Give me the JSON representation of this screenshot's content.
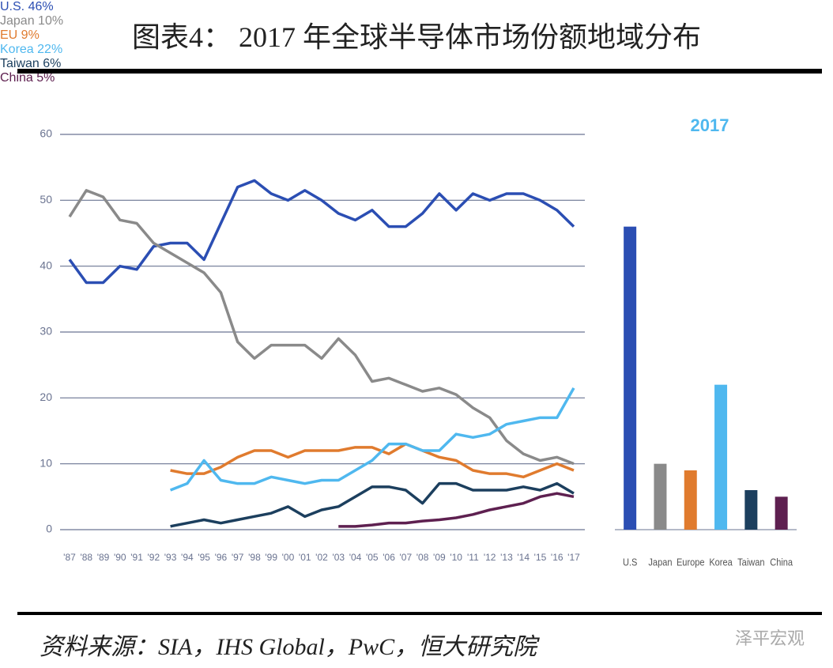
{
  "header": {
    "title": "图表4： 2017 年全球半导体市场份额地域分布"
  },
  "footer": {
    "source": "资料来源：SIA，IHS Global，PwC，恒大研究院",
    "watermark": "泽平宏观"
  },
  "chart_data": [
    {
      "type": "line",
      "categories": [
        "'87",
        "'88",
        "'89",
        "'90",
        "'91",
        "'92",
        "'93",
        "'94",
        "'95",
        "'96",
        "'97",
        "'98",
        "'99",
        "'00",
        "'01",
        "'02",
        "'03",
        "'04",
        "'05",
        "'06",
        "'07",
        "'08",
        "'09",
        "'10",
        "'11",
        "'12",
        "'13",
        "'14",
        "'15",
        "'16",
        "'17"
      ],
      "ylim": [
        0,
        60
      ],
      "yticks": [
        0,
        10,
        20,
        30,
        40,
        50,
        60
      ],
      "grid": true,
      "series": [
        {
          "color": "#2b4eb3",
          "values": [
            41,
            37.5,
            37.5,
            40,
            39.5,
            43,
            43.5,
            43.5,
            41,
            46.5,
            52,
            53,
            51,
            50,
            51.5,
            50,
            48,
            47,
            48.5,
            46,
            46,
            48,
            51,
            48.5,
            51,
            50,
            51,
            51,
            50,
            48.5,
            46
          ]
        },
        {
          "color": "#8a8a8a",
          "values": [
            47.5,
            51.5,
            50.5,
            47,
            46.5,
            43.5,
            42,
            40.5,
            39,
            36,
            28.5,
            26,
            28,
            28,
            28,
            26,
            29,
            26.5,
            22.5,
            23,
            22,
            21,
            21.5,
            20.5,
            18.5,
            17,
            13.5,
            11.5,
            10.5,
            11,
            10
          ]
        },
        {
          "color": "#e07b2e",
          "values": [
            null,
            null,
            null,
            null,
            null,
            null,
            9,
            8.5,
            8.5,
            9.5,
            11,
            12,
            12,
            11,
            12,
            12,
            12,
            12.5,
            12.5,
            11.5,
            13,
            12,
            11,
            10.5,
            9,
            8.5,
            8.5,
            8,
            9,
            10,
            9
          ]
        },
        {
          "color": "#4fb8ef",
          "values": [
            null,
            null,
            null,
            null,
            null,
            null,
            6,
            7,
            10.5,
            7.5,
            7,
            7,
            8,
            7.5,
            7,
            7.5,
            7.5,
            9,
            10.5,
            13,
            13,
            12,
            12,
            14.5,
            14,
            14.5,
            16,
            16.5,
            17,
            17,
            21.5
          ]
        },
        {
          "color": "#1c3f5e",
          "values": [
            null,
            null,
            null,
            null,
            null,
            null,
            0.5,
            1,
            1.5,
            1,
            1.5,
            2,
            2.5,
            3.5,
            2,
            3,
            3.5,
            5,
            6.5,
            6.5,
            6,
            4,
            7,
            7,
            6,
            6,
            6,
            6.5,
            6,
            7,
            5.5
          ]
        },
        {
          "color": "#5e2050",
          "values": [
            null,
            null,
            null,
            null,
            null,
            null,
            null,
            null,
            null,
            null,
            null,
            null,
            null,
            null,
            null,
            null,
            0.5,
            0.5,
            0.7,
            1,
            1,
            1.3,
            1.5,
            1.8,
            2.3,
            3,
            3.5,
            4,
            5,
            5.5,
            5
          ]
        }
      ]
    },
    {
      "type": "bar",
      "title": "2017",
      "categories": [
        "U.S",
        "Japan",
        "Europe",
        "Korea",
        "Taiwan",
        "China"
      ],
      "values": [
        46,
        10,
        9,
        22,
        6,
        5
      ],
      "value_labels": [
        "U.S. 46%",
        "Japan\n10%",
        "EU\n9%",
        "Korea\n22%",
        "Taiwan\n6%",
        "China\n5%"
      ],
      "colors": [
        "#2b4eb3",
        "#8a8a8a",
        "#e07b2e",
        "#4fb8ef",
        "#1c3f5e",
        "#5e2050"
      ]
    }
  ]
}
